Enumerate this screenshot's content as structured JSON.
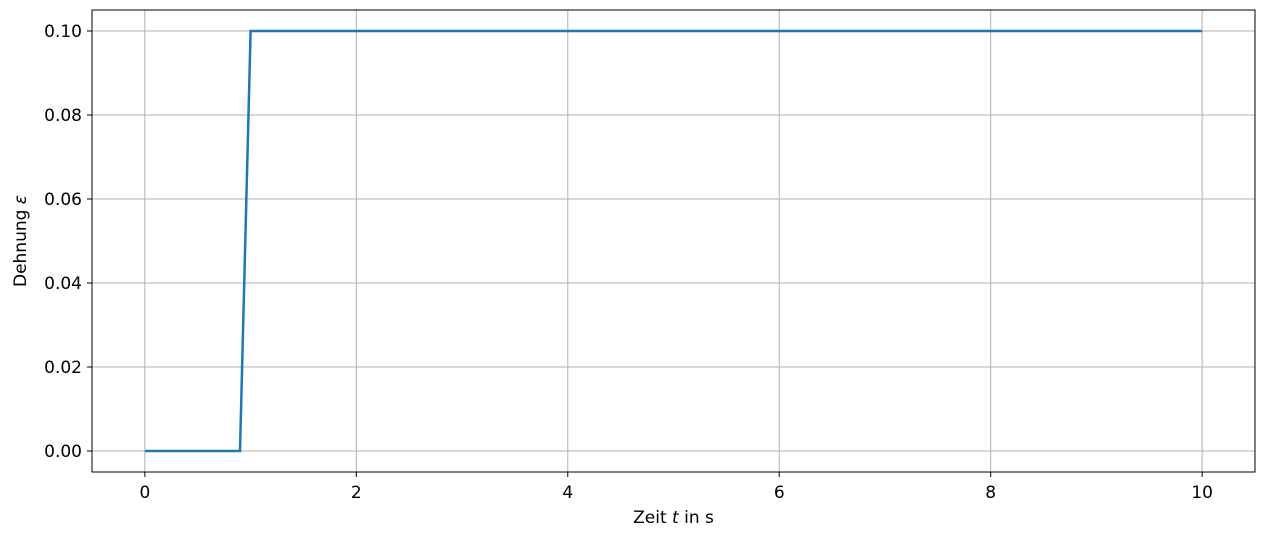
{
  "chart_data": {
    "type": "line",
    "title": "",
    "xlabel": {
      "prefix": "Zeit ",
      "variable": "t",
      "suffix": " in s"
    },
    "ylabel": {
      "prefix": "Dehnung ",
      "variable": "ε"
    },
    "xlim": [
      -0.5,
      10.5
    ],
    "ylim": [
      -0.005,
      0.105
    ],
    "xticks": [
      0,
      2,
      4,
      6,
      8,
      10
    ],
    "xtick_labels": [
      "0",
      "2",
      "4",
      "6",
      "8",
      "10"
    ],
    "yticks": [
      0.0,
      0.02,
      0.04,
      0.06,
      0.08,
      0.1
    ],
    "ytick_labels": [
      "0.00",
      "0.02",
      "0.04",
      "0.06",
      "0.08",
      "0.10"
    ],
    "grid": true,
    "series": [
      {
        "color": "#1f77b4",
        "x": [
          0,
          0.9,
          1.0,
          10
        ],
        "y": [
          0.0,
          0.0,
          0.1,
          0.1
        ]
      }
    ]
  }
}
